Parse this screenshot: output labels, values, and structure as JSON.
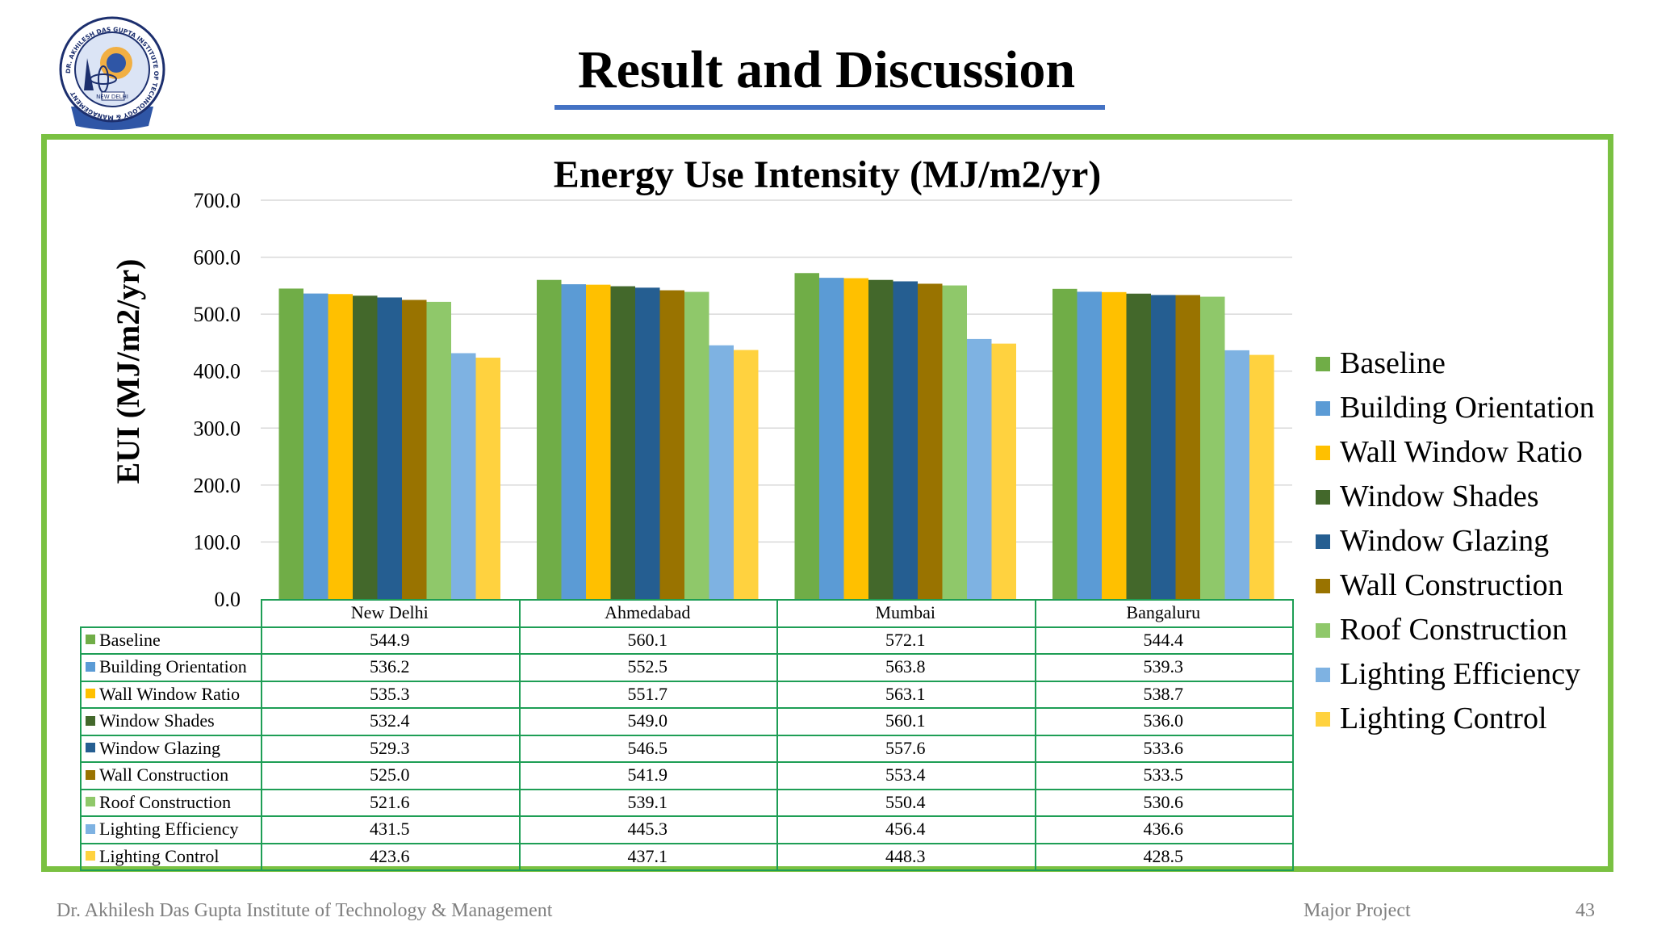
{
  "slide": {
    "title": "Result and Discussion",
    "logo_text": "DR. AKHILESH DAS GUPTA INSTITUTE OF TECHNOLOGY & MANAGEMENT",
    "logo_city": "NEW DELHI",
    "accent_color": "#4472c4",
    "frame_color": "#7ac142"
  },
  "footer": {
    "institute": "Dr. Akhilesh Das Gupta Institute of Technology & Management",
    "project": "Major Project",
    "page_number": "43"
  },
  "chart_data": {
    "type": "bar",
    "title": "Energy Use Intensity (MJ/m2/yr)",
    "ylabel": "EUI (MJ/m2/yr)",
    "xlabel": "",
    "ylim": [
      0,
      700
    ],
    "yticks": [
      "0.0",
      "100.0",
      "200.0",
      "300.0",
      "400.0",
      "500.0",
      "600.0",
      "700.0"
    ],
    "grid": true,
    "legend": "right",
    "categories": [
      "New Delhi",
      "Ahmedabad",
      "Mumbai",
      "Bangaluru"
    ],
    "series": [
      {
        "name": "Baseline",
        "color": "#70ad47",
        "values": [
          544.9,
          560.1,
          572.1,
          544.4
        ],
        "labels": [
          "544.9",
          "560.1",
          "572.1",
          "544.4"
        ]
      },
      {
        "name": "Building Orientation",
        "color": "#5b9bd5",
        "values": [
          536.2,
          552.5,
          563.8,
          539.3
        ],
        "labels": [
          "536.2",
          "552.5",
          "563.8",
          "539.3"
        ]
      },
      {
        "name": "Wall Window Ratio",
        "color": "#ffc000",
        "values": [
          535.3,
          551.7,
          563.1,
          538.7
        ],
        "labels": [
          "535.3",
          "551.7",
          "563.1",
          "538.7"
        ]
      },
      {
        "name": "Window Shades",
        "color": "#43682b",
        "values": [
          532.4,
          549.0,
          560.1,
          536.0
        ],
        "labels": [
          "532.4",
          "549.0",
          "560.1",
          "536.0"
        ]
      },
      {
        "name": "Window Glazing",
        "color": "#255e91",
        "values": [
          529.3,
          546.5,
          557.6,
          533.6
        ],
        "labels": [
          "529.3",
          "546.5",
          "557.6",
          "533.6"
        ]
      },
      {
        "name": "Wall Construction",
        "color": "#997300",
        "values": [
          525.0,
          541.9,
          553.4,
          533.5
        ],
        "labels": [
          "525.0",
          "541.9",
          "553.4",
          "533.5"
        ]
      },
      {
        "name": "Roof Construction",
        "color": "#8fc86a",
        "values": [
          521.6,
          539.1,
          550.4,
          530.6
        ],
        "labels": [
          "521.6",
          "539.1",
          "550.4",
          "530.6"
        ]
      },
      {
        "name": "Lighting Efficiency",
        "color": "#7eb2e2",
        "values": [
          431.5,
          445.3,
          456.4,
          436.6
        ],
        "labels": [
          "431.5",
          "445.3",
          "456.4",
          "436.6"
        ]
      },
      {
        "name": "Lighting Control",
        "color": "#ffd23f",
        "values": [
          423.6,
          437.1,
          448.3,
          428.5
        ],
        "labels": [
          "423.6",
          "437.1",
          "448.3",
          "428.5"
        ]
      }
    ]
  }
}
